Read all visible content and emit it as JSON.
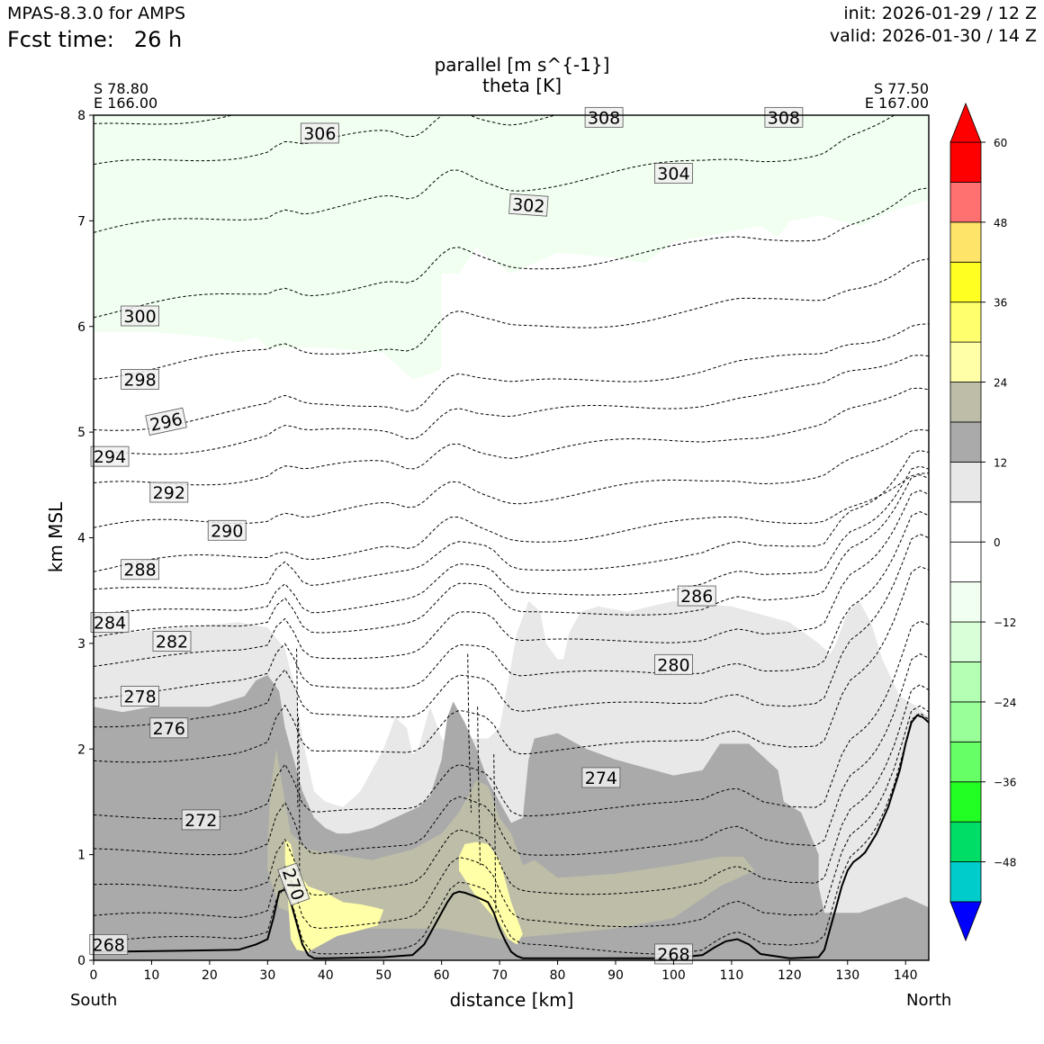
{
  "header": {
    "model": "MPAS-8.3.0 for AMPS",
    "fcst_label": "Fcst time:",
    "fcst_value": "26 h",
    "init": "init: 2026-01-29 / 12 Z",
    "valid": "valid: 2026-01-30 / 14 Z"
  },
  "titles": {
    "line1": "parallel [m s^{-1}]",
    "line2": "theta [K]"
  },
  "endpoints": {
    "left_lat": "S 78.80",
    "left_lon": "E 166.00",
    "right_lat": "S 77.50",
    "right_lon": "E 167.00",
    "left_dir": "South",
    "right_dir": "North"
  },
  "chart_data": {
    "type": "cross-section",
    "xlabel": "distance [km]",
    "ylabel": "km MSL",
    "xlim": [
      0,
      144
    ],
    "ylim": [
      0,
      8
    ],
    "xticks": [
      "0",
      "10",
      "20",
      "30",
      "40",
      "50",
      "60",
      "70",
      "80",
      "90",
      "100",
      "110",
      "120",
      "130",
      "140"
    ],
    "yticks": [
      "0",
      "1",
      "2",
      "3",
      "4",
      "5",
      "6",
      "7",
      "8"
    ],
    "terrain": {
      "x": [
        0,
        15,
        25,
        28,
        30,
        31,
        32,
        33,
        34,
        35,
        36,
        37,
        38,
        40,
        50,
        55,
        57,
        59,
        61,
        62,
        63,
        64,
        66,
        68,
        69,
        70,
        71,
        72,
        73,
        74,
        75,
        80,
        90,
        100,
        105,
        107,
        109,
        111,
        113,
        115,
        120,
        125,
        126,
        127,
        128,
        129,
        130,
        131,
        132,
        133,
        135,
        137,
        139,
        140,
        141,
        142,
        143,
        144
      ],
      "y": [
        0.08,
        0.09,
        0.1,
        0.15,
        0.2,
        0.4,
        0.65,
        0.67,
        0.55,
        0.35,
        0.15,
        0.05,
        0.02,
        0.02,
        0.03,
        0.05,
        0.15,
        0.35,
        0.55,
        0.63,
        0.65,
        0.64,
        0.6,
        0.55,
        0.45,
        0.3,
        0.18,
        0.08,
        0.04,
        0.02,
        0.02,
        0.02,
        0.02,
        0.02,
        0.05,
        0.12,
        0.18,
        0.2,
        0.15,
        0.06,
        0.02,
        0.03,
        0.1,
        0.3,
        0.5,
        0.7,
        0.85,
        0.93,
        0.97,
        1.02,
        1.2,
        1.45,
        1.8,
        2.05,
        2.25,
        2.32,
        2.3,
        2.25
      ]
    },
    "colorbar": {
      "ticks": [
        "60",
        "48",
        "36",
        "24",
        "12",
        "0",
        "−12",
        "−24",
        "−36",
        "−48"
      ],
      "levels": [
        -54,
        -48,
        -42,
        -36,
        -30,
        -24,
        -18,
        -12,
        -6,
        0,
        6,
        12,
        18,
        24,
        30,
        36,
        42,
        48,
        54,
        60
      ],
      "colors": [
        "#0000ff",
        "#00cccc",
        "#00dd66",
        "#22ff22",
        "#66ff66",
        "#99ff99",
        "#b3ffb3",
        "#d9ffd9",
        "#f0fff0",
        "#ffffff",
        "#ffffff",
        "#e8e8e8",
        "#aaaaaa",
        "#bdbda8",
        "#ffffa8",
        "#ffff6e",
        "#ffff22",
        "#ffe46a",
        "#ff7070",
        "#ff0000"
      ],
      "under": "#0000ff",
      "over": "#ff0000"
    },
    "shading": [
      {
        "name": "light-green",
        "value": -6,
        "color": "#f0fff0"
      },
      {
        "name": "light-gray",
        "value": 9,
        "color": "#e8e8e8"
      },
      {
        "name": "dark-gray",
        "value": 15,
        "color": "#aaaaaa"
      },
      {
        "name": "khaki",
        "value": 21,
        "color": "#bdbda8"
      },
      {
        "name": "pale-yellow",
        "value": 27,
        "color": "#ffffa8"
      }
    ],
    "theta_levels": [
      268,
      270,
      272,
      274,
      276,
      278,
      280,
      282,
      284,
      286,
      288,
      290,
      292,
      294,
      296,
      298,
      300,
      302,
      304,
      306,
      308
    ],
    "contour_labels": [
      {
        "text": "268",
        "x": 2.6,
        "y": 0.15
      },
      {
        "text": "270",
        "x": 34.5,
        "y": 0.72
      },
      {
        "text": "272",
        "x": 18.5,
        "y": 1.33
      },
      {
        "text": "274",
        "x": 87.5,
        "y": 1.73
      },
      {
        "text": "276",
        "x": 13,
        "y": 2.2
      },
      {
        "text": "278",
        "x": 8,
        "y": 2.5
      },
      {
        "text": "280",
        "x": 100,
        "y": 2.8
      },
      {
        "text": "282",
        "x": 13.5,
        "y": 3.02
      },
      {
        "text": "284",
        "x": 2.8,
        "y": 3.2
      },
      {
        "text": "286",
        "x": 104,
        "y": 3.45
      },
      {
        "text": "288",
        "x": 8,
        "y": 3.7
      },
      {
        "text": "290",
        "x": 23,
        "y": 4.07
      },
      {
        "text": "292",
        "x": 13,
        "y": 4.43
      },
      {
        "text": "294",
        "x": 2.8,
        "y": 4.77
      },
      {
        "text": "296",
        "x": 12.5,
        "y": 5.1
      },
      {
        "text": "298",
        "x": 8,
        "y": 5.5
      },
      {
        "text": "300",
        "x": 8,
        "y": 6.1
      },
      {
        "text": "302",
        "x": 75,
        "y": 7.15
      },
      {
        "text": "304",
        "x": 100,
        "y": 7.45
      },
      {
        "text": "306",
        "x": 39,
        "y": 7.83
      },
      {
        "text": "308",
        "x": 88,
        "y": 7.98
      },
      {
        "text": "308",
        "x": 119,
        "y": 7.98
      },
      {
        "text": "268",
        "x": 100,
        "y": 0.06
      }
    ]
  }
}
